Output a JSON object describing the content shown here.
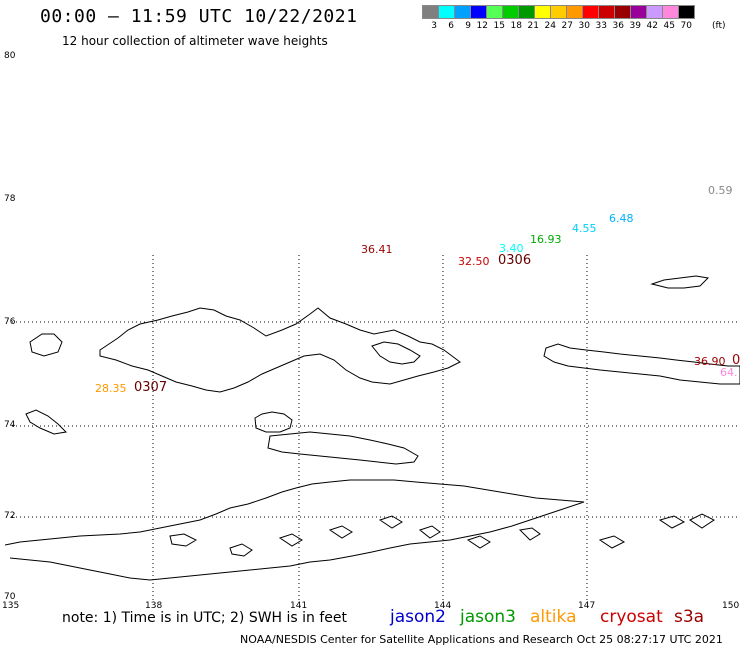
{
  "header": {
    "title": "00:00 – 11:59 UTC 10/22/2021",
    "subtitle": "12 hour collection of altimeter wave heights"
  },
  "scale": {
    "unit": "(ft)",
    "levels": [
      {
        "label": "3",
        "color": "#7f7f7f"
      },
      {
        "label": "6",
        "color": "#00ffff"
      },
      {
        "label": "9",
        "color": "#00a0ff"
      },
      {
        "label": "12",
        "color": "#0000ff"
      },
      {
        "label": "15",
        "color": "#55ff55"
      },
      {
        "label": "18",
        "color": "#00cc00"
      },
      {
        "label": "21",
        "color": "#009900"
      },
      {
        "label": "24",
        "color": "#ffff00"
      },
      {
        "label": "27",
        "color": "#ffcc00"
      },
      {
        "label": "30",
        "color": "#ff9900"
      },
      {
        "label": "33",
        "color": "#ff0000"
      },
      {
        "label": "36",
        "color": "#cc0000"
      },
      {
        "label": "39",
        "color": "#990000"
      },
      {
        "label": "42",
        "color": "#990099"
      },
      {
        "label": "45",
        "color": "#cc99ff"
      },
      {
        "label": "70",
        "color": "#ff88dd"
      },
      {
        "label": "",
        "color": "#000000"
      }
    ]
  },
  "axes": {
    "lat_labels": [
      "80",
      "78",
      "76",
      "74",
      "72",
      "70"
    ],
    "lon_labels": [
      "135",
      "138",
      "141",
      "144",
      "147",
      "150"
    ]
  },
  "observations": [
    {
      "text": "0.59",
      "color": "#888888"
    },
    {
      "text": "6.48",
      "color": "#00b0ff"
    },
    {
      "text": "4.55",
      "color": "#00ccff"
    },
    {
      "text": "16.93",
      "color": "#00aa00"
    },
    {
      "text": "3.40",
      "color": "#00ffff"
    },
    {
      "text": "0306",
      "color": "#660000"
    },
    {
      "text": "32.50",
      "color": "#cc0000"
    },
    {
      "text": "36.41",
      "color": "#990000"
    },
    {
      "text": "36.90",
      "color": "#990000"
    },
    {
      "text": "0",
      "color": "#990000"
    },
    {
      "text": "64.",
      "color": "#ff88dd"
    },
    {
      "text": "28.35",
      "color": "#ff9900"
    },
    {
      "text": "0307",
      "color": "#660000"
    }
  ],
  "legend": {
    "note": "note:  1) Time is in UTC; 2) SWH is in feet",
    "satellites": [
      {
        "name": "jason2",
        "color": "#0000cc"
      },
      {
        "name": "jason3",
        "color": "#009900"
      },
      {
        "name": "altika",
        "color": "#ff9900"
      },
      {
        "name": "cryosat",
        "color": "#cc0000"
      },
      {
        "name": "s3a",
        "color": "#990000"
      }
    ]
  },
  "footer": "NOAA/NESDIS Center for Satellite Applications and Research    Oct 25 08:27:17 UTC 2021"
}
